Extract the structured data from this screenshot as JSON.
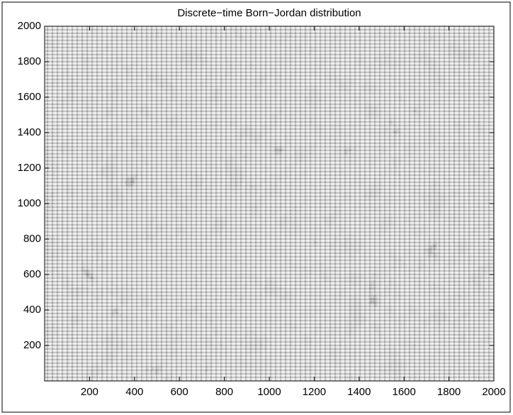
{
  "chart_data": {
    "type": "image",
    "title": "Discrete−time Born−Jordan distribution",
    "xlim": [
      0,
      2000
    ],
    "ylim": [
      0,
      2000
    ],
    "xticks": [
      200,
      400,
      600,
      800,
      1000,
      1200,
      1400,
      1600,
      1800,
      2000
    ],
    "yticks": [
      200,
      400,
      600,
      800,
      1000,
      1200,
      1400,
      1600,
      1800,
      2000
    ]
  }
}
